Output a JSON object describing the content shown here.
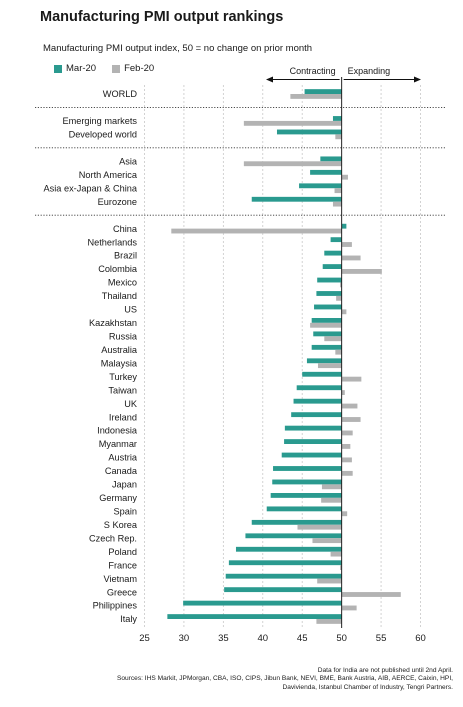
{
  "chart_data": {
    "type": "bar",
    "orientation": "horizontal",
    "title": "Manufacturing PMI output rankings",
    "subtitle": "Manufacturing PMI output index, 50 = no change on prior month",
    "xlim": [
      25,
      60
    ],
    "xticks": [
      25,
      30,
      35,
      40,
      45,
      50,
      55,
      60
    ],
    "reference_line": 50,
    "direction_labels": [
      "Contracting",
      "Expanding"
    ],
    "grid": true,
    "legend": "top-left",
    "colors": {
      "mar20": "#2a9a8f",
      "feb20": "#b3b3b3"
    },
    "categories": [
      "WORLD",
      "Emerging markets",
      "Developed world",
      "Asia",
      "North America",
      "Asia ex-Japan & China",
      "Eurozone",
      "China",
      "Netherlands",
      "Brazil",
      "Colombia",
      "Mexico",
      "Thailand",
      "US",
      "Kazakhstan",
      "Russia",
      "Australia",
      "Malaysia",
      "Turkey",
      "Taiwan",
      "UK",
      "Ireland",
      "Indonesia",
      "Myanmar",
      "Austria",
      "Canada",
      "Japan",
      "Germany",
      "Spain",
      "S Korea",
      "Czech Rep.",
      "Poland",
      "France",
      "Vietnam",
      "Greece",
      "Philippines",
      "Italy"
    ],
    "group_breaks_after": [
      "WORLD",
      "Developed world",
      "Eurozone"
    ],
    "series": [
      {
        "name": "Mar-20",
        "values": [
          45.3,
          48.9,
          41.8,
          47.3,
          46.0,
          44.6,
          38.6,
          50.6,
          48.6,
          47.8,
          47.6,
          46.9,
          46.8,
          46.5,
          46.2,
          46.4,
          46.2,
          45.6,
          45.0,
          44.3,
          43.9,
          43.6,
          42.8,
          42.7,
          42.4,
          41.3,
          41.2,
          41.0,
          40.5,
          38.6,
          37.8,
          36.6,
          35.7,
          35.3,
          35.1,
          29.9,
          27.9
        ]
      },
      {
        "name": "Feb-20",
        "values": [
          43.5,
          37.6,
          49.2,
          37.6,
          50.8,
          49.1,
          48.9,
          28.4,
          51.3,
          52.4,
          55.1,
          49.8,
          49.3,
          50.6,
          46.0,
          47.8,
          49.2,
          47.0,
          52.5,
          50.4,
          52.0,
          52.4,
          51.4,
          51.1,
          51.3,
          51.4,
          47.5,
          47.4,
          50.7,
          44.4,
          46.3,
          48.6,
          49.8,
          46.9,
          57.5,
          51.9,
          46.8
        ]
      }
    ],
    "footnote": [
      "Data for India are not published until 2nd April.",
      "Sources: IHS Markit, JPMorgan, CBA, ISO, CIPS, Jibun Bank, NEVI, BME, Bank Austria, AIB, AERCE, Caixin, HPI,",
      "Davivienda, Istanbul Chamber of Industry, Tengri Partners."
    ]
  }
}
